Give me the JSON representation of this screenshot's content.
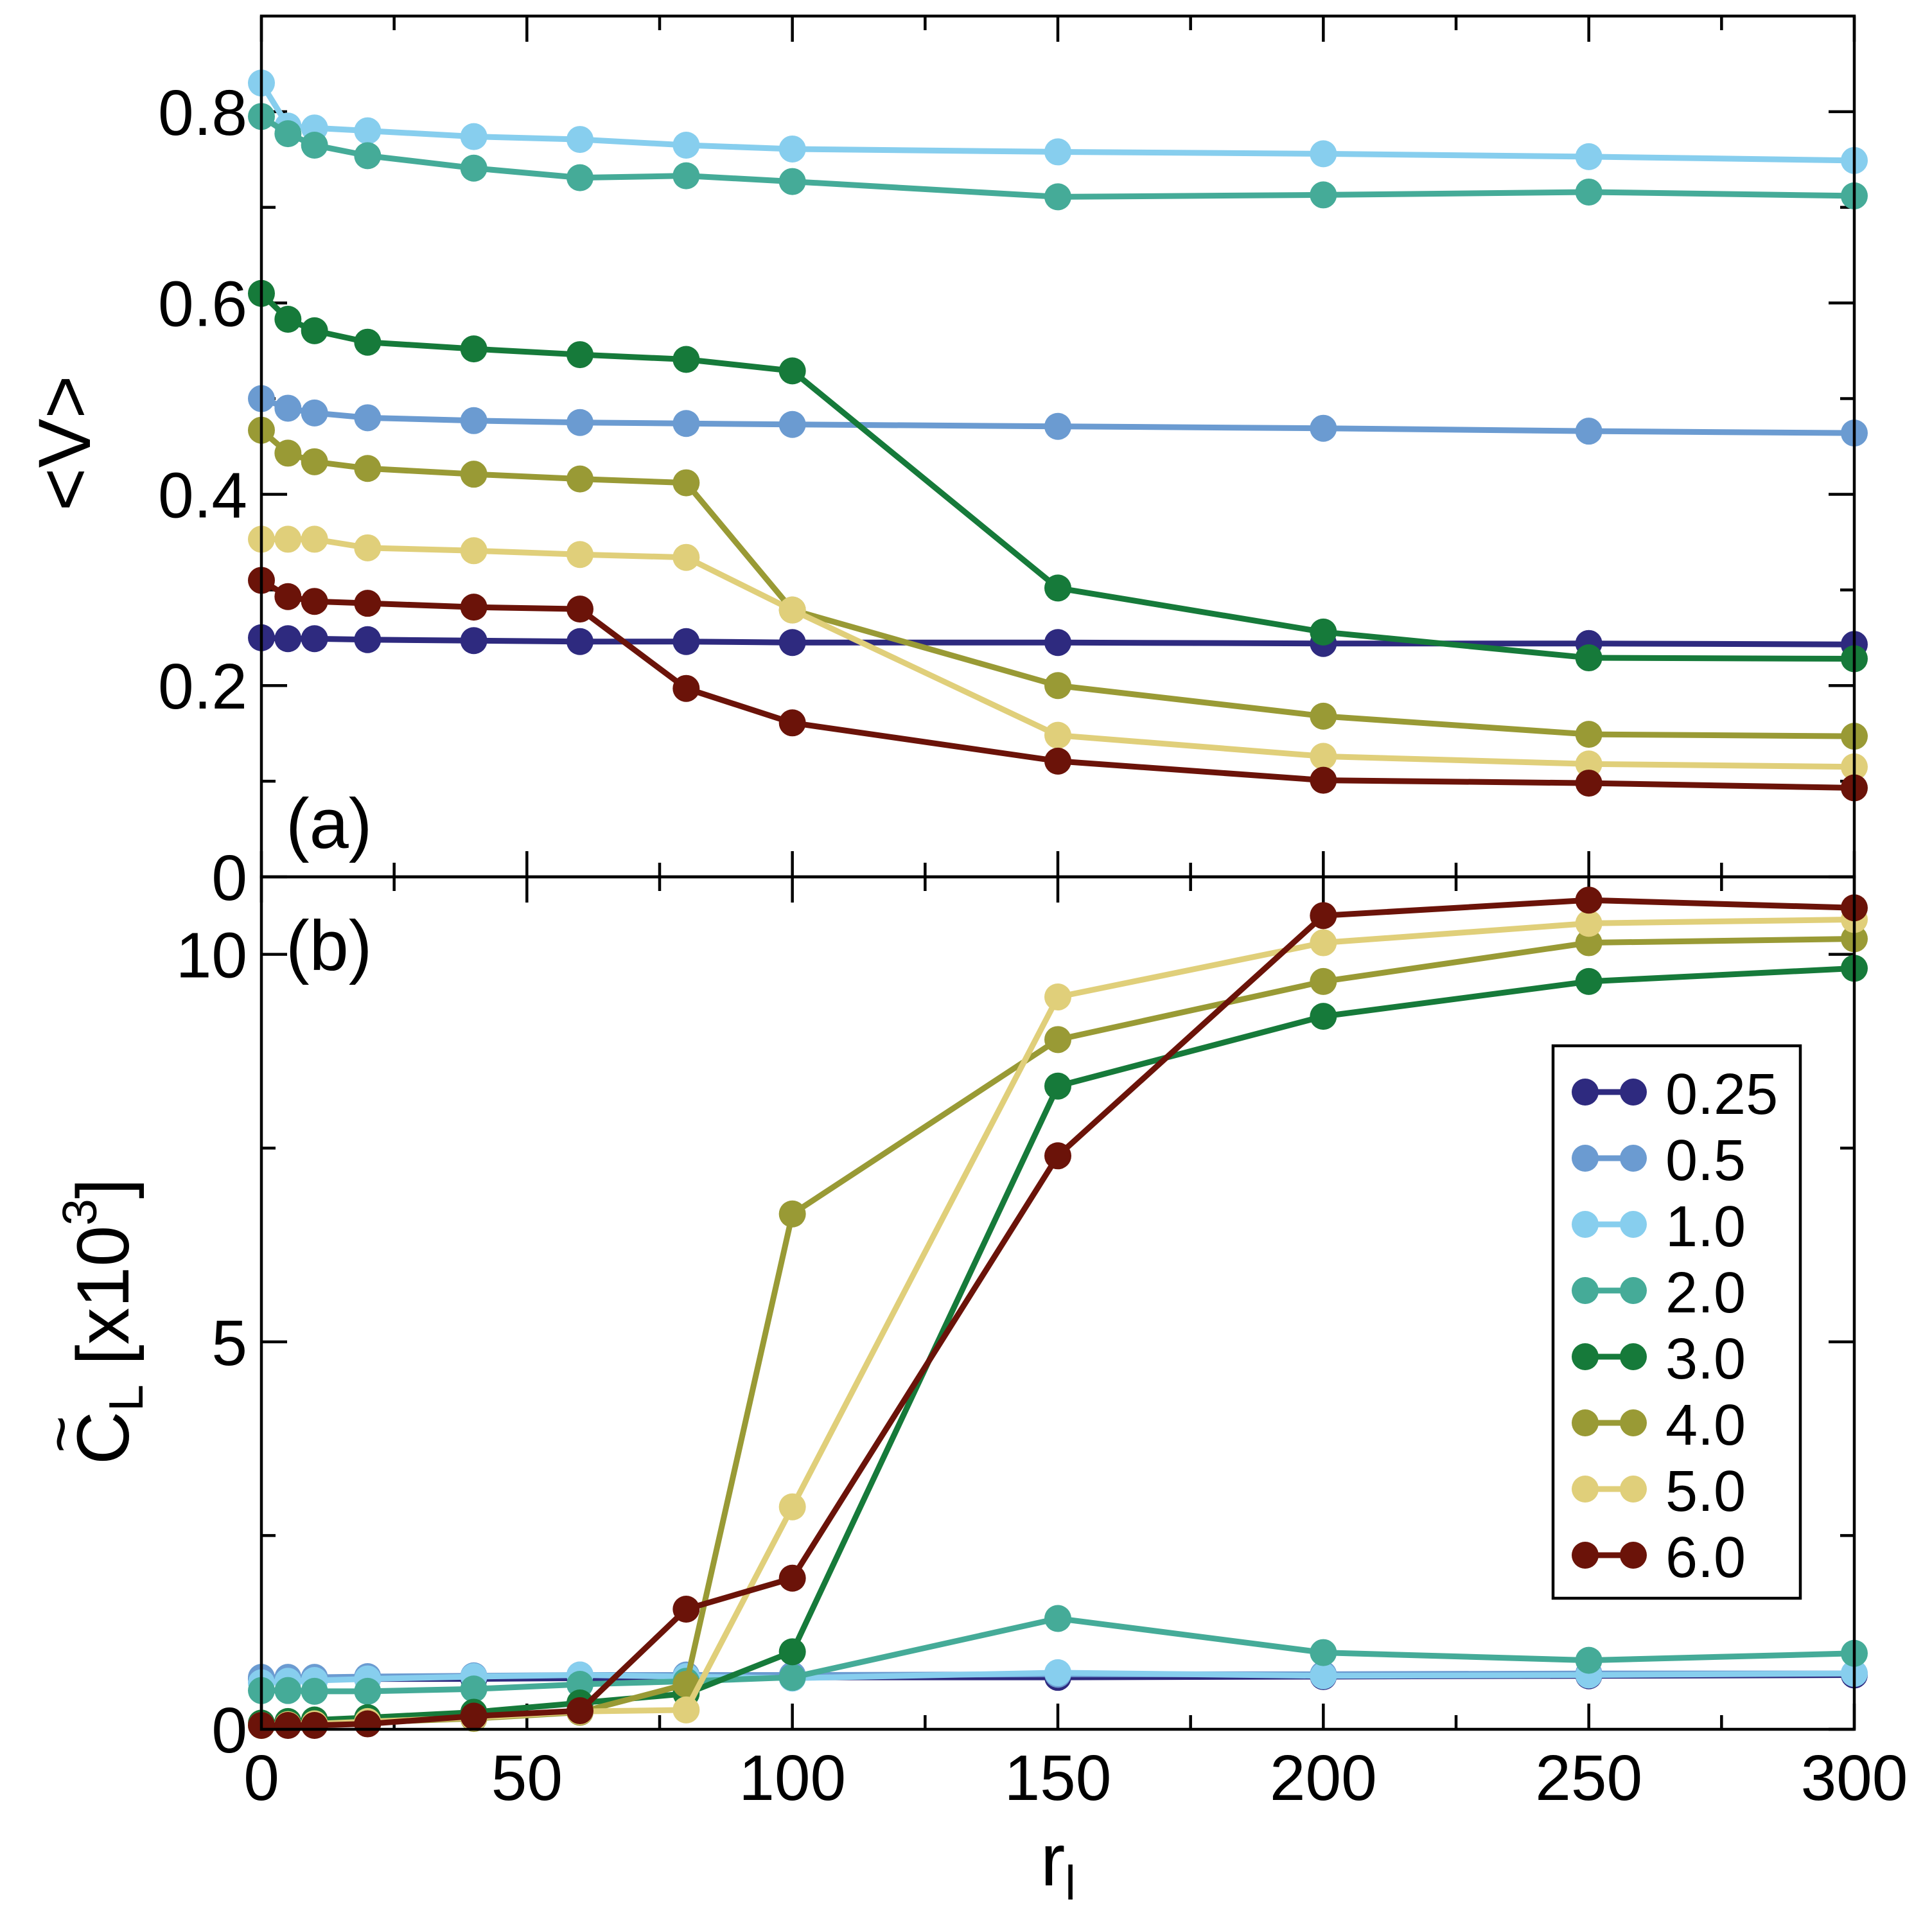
{
  "chart_data": [
    {
      "panel_label": "(a)",
      "type": "line",
      "ylabel": "<V>",
      "ylim": [
        0,
        0.9
      ],
      "yticks": [
        0,
        0.2,
        0.4,
        0.6,
        0.8
      ],
      "ytick_labels": [
        "0",
        "0.2",
        "0.4",
        "0.6",
        "0.8"
      ],
      "xlim": [
        0,
        300
      ],
      "x": [
        0,
        5,
        10,
        20,
        40,
        60,
        80,
        100,
        150,
        200,
        250,
        300
      ],
      "series": [
        {
          "name": "0.25",
          "color": "#2e2a7f",
          "values": [
            0.25,
            0.249,
            0.249,
            0.248,
            0.247,
            0.246,
            0.246,
            0.245,
            0.245,
            0.244,
            0.244,
            0.243
          ]
        },
        {
          "name": "0.5",
          "color": "#6b9bd1",
          "values": [
            0.5,
            0.49,
            0.485,
            0.48,
            0.477,
            0.475,
            0.474,
            0.473,
            0.471,
            0.469,
            0.466,
            0.464
          ]
        },
        {
          "name": "1.0",
          "color": "#87ceee",
          "values": [
            0.83,
            0.785,
            0.783,
            0.78,
            0.774,
            0.771,
            0.765,
            0.761,
            0.758,
            0.756,
            0.753,
            0.749
          ]
        },
        {
          "name": "2.0",
          "color": "#45ab98",
          "values": [
            0.795,
            0.777,
            0.765,
            0.754,
            0.741,
            0.731,
            0.733,
            0.727,
            0.711,
            0.713,
            0.716,
            0.712
          ]
        },
        {
          "name": "3.0",
          "color": "#167a3a",
          "values": [
            0.61,
            0.583,
            0.571,
            0.559,
            0.552,
            0.546,
            0.541,
            0.529,
            0.302,
            0.256,
            0.229,
            0.228
          ]
        },
        {
          "name": "4.0",
          "color": "#999a35",
          "values": [
            0.467,
            0.443,
            0.434,
            0.427,
            0.421,
            0.416,
            0.412,
            0.279,
            0.2,
            0.168,
            0.149,
            0.147
          ]
        },
        {
          "name": "5.0",
          "color": "#e0cf7a",
          "values": [
            0.353,
            0.353,
            0.353,
            0.344,
            0.341,
            0.337,
            0.334,
            0.279,
            0.148,
            0.126,
            0.118,
            0.115
          ]
        },
        {
          "name": "6.0",
          "color": "#6b1309",
          "values": [
            0.31,
            0.293,
            0.288,
            0.286,
            0.282,
            0.28,
            0.197,
            0.161,
            0.121,
            0.101,
            0.098,
            0.093
          ]
        }
      ]
    },
    {
      "panel_label": "(b)",
      "type": "line",
      "ylabel_main": "C",
      "ylabel_tilde": "~",
      "ylabel_sub": "L",
      "ylabel_bracket": "[x10",
      "ylabel_sup": "3",
      "ylabel_close": "]",
      "xlabel_main": "r",
      "xlabel_sub": "l",
      "ylim": [
        0,
        11
      ],
      "yticks": [
        0,
        5,
        10
      ],
      "ytick_labels": [
        "0",
        "5",
        "10"
      ],
      "xlim": [
        0,
        300
      ],
      "xticks": [
        0,
        50,
        100,
        150,
        200,
        250,
        300
      ],
      "xtick_labels": [
        "0",
        "50",
        "100",
        "150",
        "200",
        "250",
        "300"
      ],
      "x": [
        0,
        5,
        10,
        20,
        40,
        60,
        80,
        100,
        150,
        200,
        250,
        300
      ],
      "legend_position": "center-right",
      "series": [
        {
          "name": "0.25",
          "color": "#2e2a7f",
          "values": [
            0.65,
            0.65,
            0.65,
            0.65,
            0.65,
            0.66,
            0.66,
            0.67,
            0.67,
            0.68,
            0.69,
            0.7
          ]
        },
        {
          "name": "0.5",
          "color": "#6b9bd1",
          "values": [
            0.67,
            0.67,
            0.67,
            0.68,
            0.69,
            0.7,
            0.7,
            0.7,
            0.71,
            0.71,
            0.72,
            0.72
          ]
        },
        {
          "name": "1.0",
          "color": "#87ceee",
          "values": [
            0.6,
            0.62,
            0.63,
            0.65,
            0.68,
            0.7,
            0.68,
            0.66,
            0.73,
            0.69,
            0.7,
            0.72
          ]
        },
        {
          "name": "2.0",
          "color": "#45ab98",
          "values": [
            0.5,
            0.5,
            0.49,
            0.49,
            0.52,
            0.58,
            0.62,
            0.67,
            1.43,
            0.99,
            0.89,
            0.98
          ]
        },
        {
          "name": "3.0",
          "color": "#167a3a",
          "values": [
            0.08,
            0.1,
            0.12,
            0.15,
            0.22,
            0.34,
            0.46,
            1.0,
            8.3,
            9.2,
            9.65,
            9.82
          ]
        },
        {
          "name": "4.0",
          "color": "#999a35",
          "values": [
            0.05,
            0.06,
            0.07,
            0.09,
            0.14,
            0.22,
            0.58,
            6.65,
            8.9,
            9.65,
            10.15,
            10.2
          ]
        },
        {
          "name": "5.0",
          "color": "#e0cf7a",
          "values": [
            0.05,
            0.06,
            0.07,
            0.1,
            0.15,
            0.23,
            0.25,
            2.87,
            9.45,
            10.15,
            10.4,
            10.45
          ]
        },
        {
          "name": "6.0",
          "color": "#6b1309",
          "values": [
            0.05,
            0.05,
            0.05,
            0.07,
            0.17,
            0.24,
            1.55,
            1.95,
            7.4,
            10.5,
            10.7,
            10.6
          ]
        }
      ]
    }
  ]
}
